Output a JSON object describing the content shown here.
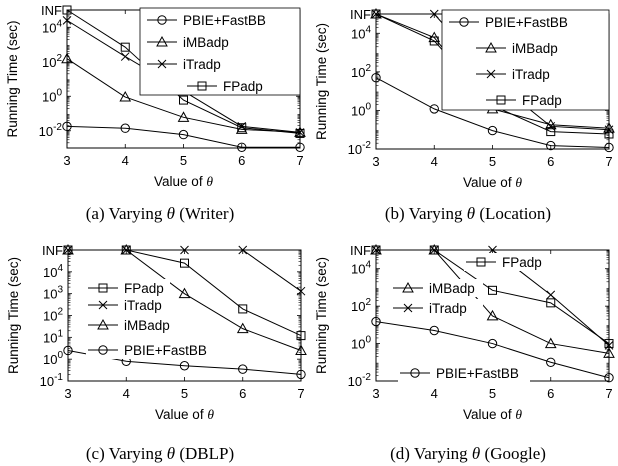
{
  "figure": {
    "captions": [
      "(a) Varying θ (Writer)",
      "(b) Varying θ (Location)",
      "(c) Varying θ (DBLP)",
      "(d) Varying θ (Google)"
    ]
  },
  "chart_data": [
    {
      "type": "line",
      "panel": "a",
      "caption": "(a) Varying θ (Writer)",
      "xlabel": "Value of θ",
      "ylabel": "Running Time (sec)",
      "x": [
        3,
        4,
        5,
        6,
        7
      ],
      "xlim": [
        3,
        7
      ],
      "yscale": "log",
      "ylim_log10": [
        -3,
        5
      ],
      "yticks": [
        {
          "label": "10",
          "exp": "-2",
          "log": -2
        },
        {
          "label": "10",
          "exp": "0",
          "log": 0
        },
        {
          "label": "10",
          "exp": "2",
          "log": 2
        },
        {
          "label": "10",
          "exp": "4",
          "log": 4
        },
        {
          "label": "INF",
          "exp": "",
          "log": 5
        }
      ],
      "legend_position": "top-right",
      "series": [
        {
          "name": "PBIE+FastBB",
          "marker": "circle",
          "values": [
            0.018,
            0.014,
            0.006,
            0.0011,
            0.0011
          ]
        },
        {
          "name": "iMBadp",
          "marker": "triangle",
          "values": [
            150,
            0.9,
            0.06,
            0.012,
            0.008
          ]
        },
        {
          "name": "iTradp",
          "marker": "x",
          "values": [
            25000,
            200,
            2,
            0.018,
            0.008
          ]
        },
        {
          "name": "FPadp",
          "marker": "square",
          "values": [
            "INF",
            700,
            0.6,
            0.015,
            0.007
          ]
        }
      ]
    },
    {
      "type": "line",
      "panel": "b",
      "caption": "(b) Varying θ (Location)",
      "xlabel": "Value of θ",
      "ylabel": "Running Time (sec)",
      "x": [
        3,
        4,
        5,
        6,
        7
      ],
      "xlim": [
        3,
        7
      ],
      "yscale": "log",
      "ylim_log10": [
        -2,
        5
      ],
      "yticks": [
        {
          "label": "10",
          "exp": "-2",
          "log": -2
        },
        {
          "label": "10",
          "exp": "0",
          "log": 0
        },
        {
          "label": "10",
          "exp": "2",
          "log": 2
        },
        {
          "label": "10",
          "exp": "4",
          "log": 4
        },
        {
          "label": "INF",
          "exp": "",
          "log": 5
        }
      ],
      "legend_position": "top-right",
      "series": [
        {
          "name": "PBIE+FastBB",
          "marker": "circle",
          "values": [
            50,
            1.2,
            0.09,
            0.015,
            0.012
          ]
        },
        {
          "name": "iMBadp",
          "marker": "triangle",
          "values": [
            "INF",
            6000,
            1.2,
            0.18,
            0.12
          ]
        },
        {
          "name": "iTradp",
          "marker": "x",
          "values": [
            "INF",
            "INF",
            40,
            0.15,
            0.1
          ]
        },
        {
          "name": "FPadp",
          "marker": "square",
          "values": [
            "INF",
            4000,
            1.8,
            0.08,
            0.06
          ]
        }
      ]
    },
    {
      "type": "line",
      "panel": "c",
      "caption": "(c) Varying θ (DBLP)",
      "xlabel": "Value of θ",
      "ylabel": "Running Time (sec)",
      "x": [
        3,
        4,
        5,
        6,
        7
      ],
      "xlim": [
        3,
        7
      ],
      "yscale": "log",
      "ylim_log10": [
        -1,
        5
      ],
      "yticks": [
        {
          "label": "10",
          "exp": "-1",
          "log": -1
        },
        {
          "label": "10",
          "exp": "0",
          "log": 0
        },
        {
          "label": "10",
          "exp": "1",
          "log": 1
        },
        {
          "label": "10",
          "exp": "2",
          "log": 2
        },
        {
          "label": "10",
          "exp": "3",
          "log": 3
        },
        {
          "label": "10",
          "exp": "4",
          "log": 4
        },
        {
          "label": "INF",
          "exp": "",
          "log": 5
        }
      ],
      "legend_position": "center-left",
      "series": [
        {
          "name": "FPadp",
          "marker": "square",
          "values": [
            "INF",
            "INF",
            25000,
            200,
            12
          ]
        },
        {
          "name": "iTradp",
          "marker": "x",
          "values": [
            "INF",
            "INF",
            "INF",
            "INF",
            1300
          ]
        },
        {
          "name": "iMBadp",
          "marker": "triangle",
          "values": [
            "INF",
            "INF",
            1000,
            25,
            2.5
          ]
        },
        {
          "name": "PBIE+FastBB",
          "marker": "circle",
          "values": [
            2.5,
            0.8,
            0.5,
            0.35,
            0.2
          ]
        }
      ]
    },
    {
      "type": "line",
      "panel": "d",
      "caption": "(d) Varying θ (Google)",
      "xlabel": "Value of θ",
      "ylabel": "Running Time (sec)",
      "x": [
        3,
        4,
        5,
        6,
        7
      ],
      "xlim": [
        3,
        7
      ],
      "yscale": "log",
      "ylim_log10": [
        -2,
        5
      ],
      "yticks": [
        {
          "label": "10",
          "exp": "-2",
          "log": -2
        },
        {
          "label": "10",
          "exp": "0",
          "log": 0
        },
        {
          "label": "10",
          "exp": "2",
          "log": 2
        },
        {
          "label": "10",
          "exp": "4",
          "log": 4
        },
        {
          "label": "INF",
          "exp": "",
          "log": 5
        }
      ],
      "legend_position": "split (top-right, middle-left, bottom-center)",
      "series": [
        {
          "name": "FPadp",
          "marker": "square",
          "values": [
            "INF",
            "INF",
            700,
            150,
            1
          ]
        },
        {
          "name": "iMBadp",
          "marker": "triangle",
          "values": [
            "INF",
            "INF",
            30,
            1,
            0.3
          ]
        },
        {
          "name": "iTradp",
          "marker": "x",
          "values": [
            "INF",
            "INF",
            "INF",
            400,
            0.8
          ]
        },
        {
          "name": "PBIE+FastBB",
          "marker": "circle",
          "values": [
            15,
            5,
            1,
            0.1,
            0.015
          ]
        }
      ]
    }
  ]
}
